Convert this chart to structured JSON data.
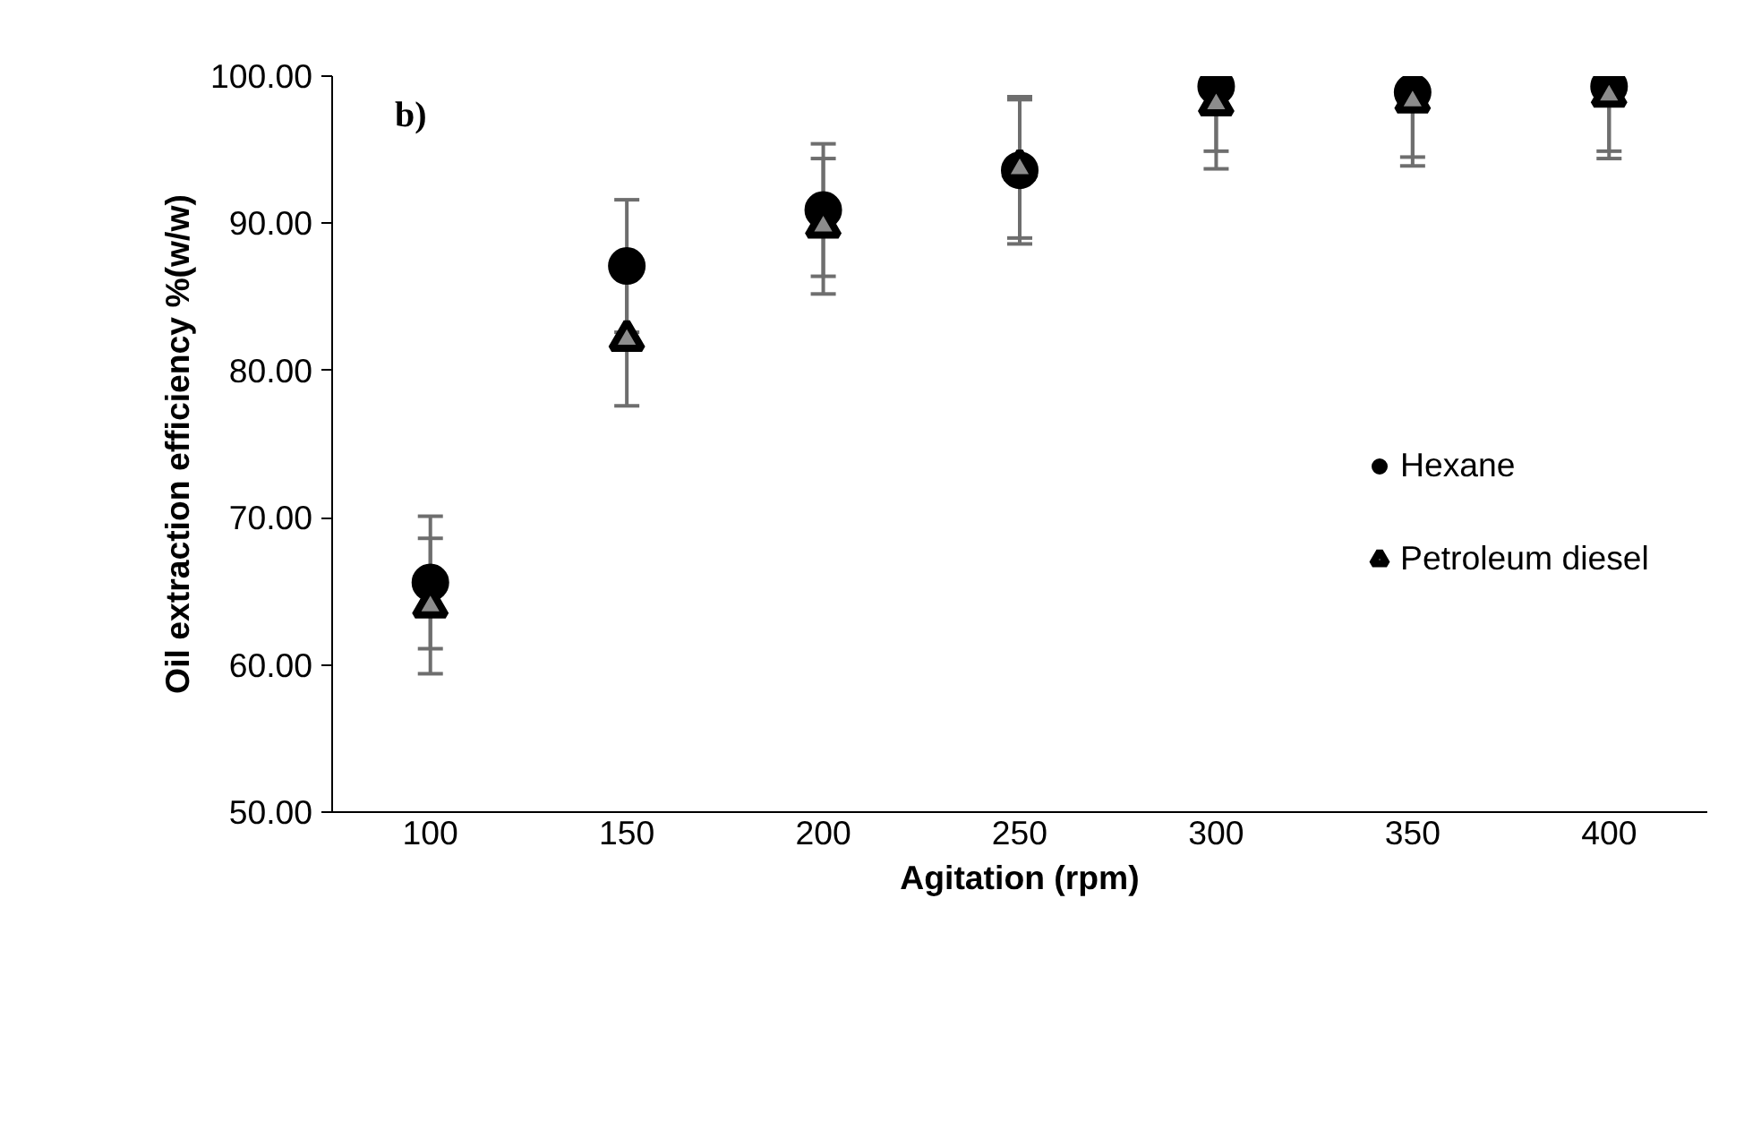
{
  "chart_data": {
    "type": "scatter",
    "xlabel": "Agitation (rpm)",
    "ylabel": "Oil extraction efficiency %(w/w)",
    "categories": [
      "100",
      "150",
      "200",
      "250",
      "300",
      "350",
      "400"
    ],
    "series": [
      {
        "name": "Hexane",
        "color": "#000000",
        "marker": "circle",
        "values": [
          65.6,
          87.1,
          90.9,
          93.6,
          99.3,
          98.9,
          99.3
        ],
        "errors": [
          4.5,
          4.5,
          4.5,
          5.0,
          4.4,
          4.4,
          4.4
        ]
      },
      {
        "name": "Petroleum diesel",
        "color": "#000000",
        "marker": "triangle",
        "values": [
          64.0,
          82.1,
          89.8,
          93.7,
          98.1,
          98.3,
          98.7
        ],
        "errors": [
          4.6,
          4.5,
          4.6,
          4.7,
          4.4,
          4.4,
          4.3
        ]
      }
    ],
    "ylim": [
      50,
      100
    ],
    "yticks": [
      {
        "value": 50,
        "label": "50.00"
      },
      {
        "value": 60,
        "label": "60.00"
      },
      {
        "value": 70,
        "label": "70.00"
      },
      {
        "value": 80,
        "label": "80.00"
      },
      {
        "value": 90,
        "label": "90.00"
      },
      {
        "value": 100,
        "label": "100.00"
      }
    ],
    "annotations": [
      "b)"
    ],
    "legend": "right",
    "grid": false
  }
}
